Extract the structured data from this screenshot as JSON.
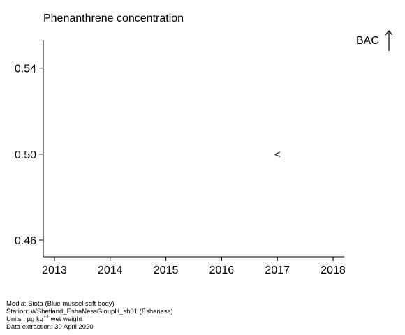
{
  "chart_data": {
    "type": "scatter",
    "title": "Phenanthrene concentration",
    "xlabel": "",
    "ylabel": "",
    "xlim": [
      2012.8,
      2018.2
    ],
    "ylim": [
      0.4522,
      0.5529
    ],
    "x_ticks": [
      "2013",
      "2014",
      "2015",
      "2016",
      "2017",
      "2018"
    ],
    "y_ticks": [
      "0.46",
      "0.50",
      "0.54"
    ],
    "grid": false,
    "points": [
      {
        "x": 2017,
        "y": 0.5,
        "marker": "<",
        "note": "less-than value"
      }
    ],
    "reference_label": "BAC",
    "reference_arrow": "up"
  },
  "footer": {
    "media": "Media: Biota (Blue mussel soft body)",
    "station": "Station: WShetland_EshaNessGloupH_sh01 (Eshaness)",
    "units_prefix": "Units : ",
    "units_unit": "µg kg",
    "units_exp": "−1",
    "units_suffix": " wet weight",
    "extraction": "Data extraction: 30 April 2020"
  }
}
